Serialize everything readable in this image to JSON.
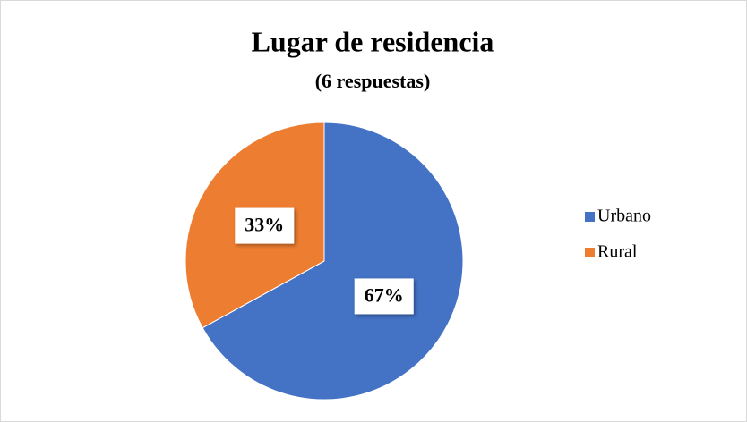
{
  "chart_data": {
    "type": "pie",
    "title": "Lugar de residencia",
    "subtitle": "(6 respuestas)",
    "categories": [
      "Urbano",
      "Rural"
    ],
    "values": [
      67,
      33
    ],
    "value_labels": [
      "67%",
      "33%"
    ],
    "colors": [
      "#4472c4",
      "#ed7d31"
    ],
    "legend": "right"
  }
}
